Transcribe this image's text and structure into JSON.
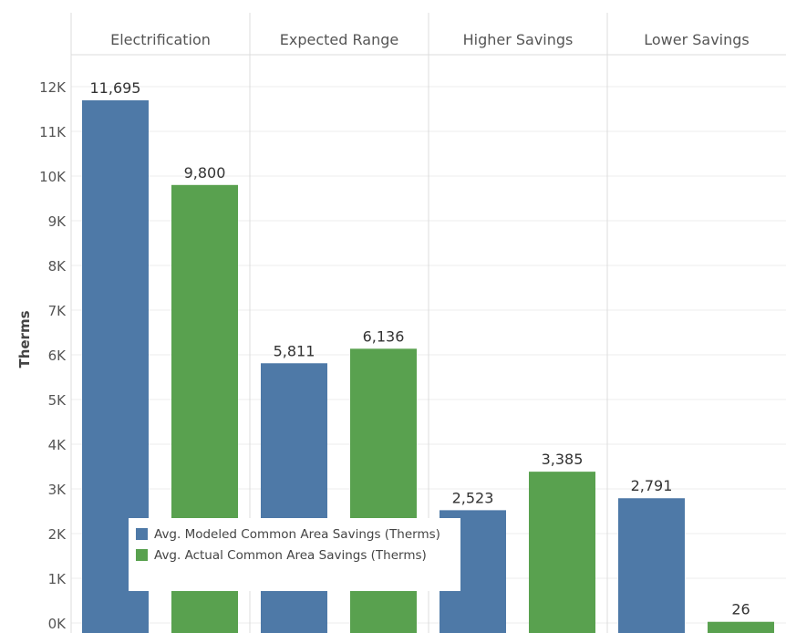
{
  "chart_data": {
    "type": "bar",
    "ylabel": "Therms",
    "ylim": [
      0,
      12000
    ],
    "yticks": [
      0,
      1000,
      2000,
      3000,
      4000,
      5000,
      6000,
      7000,
      8000,
      9000,
      10000,
      11000,
      12000
    ],
    "ytick_labels": [
      "0K",
      "1K",
      "2K",
      "3K",
      "4K",
      "5K",
      "6K",
      "7K",
      "8K",
      "9K",
      "10K",
      "11K",
      "12K"
    ],
    "categories": [
      "Electrification",
      "Expected Range",
      "Higher Savings",
      "Lower Savings"
    ],
    "series": [
      {
        "name": "Avg. Modeled Common Area Savings (Therms)",
        "color": "#4e79a7",
        "values": [
          11695,
          5811,
          2523,
          2791
        ],
        "labels": [
          "11,695",
          "5,811",
          "2,523",
          "2,791"
        ]
      },
      {
        "name": "Avg. Actual Common Area Savings (Therms)",
        "color": "#59a14f",
        "values": [
          9800,
          6136,
          3385,
          26
        ],
        "labels": [
          "9,800",
          "6,136",
          "3,385",
          "26"
        ]
      }
    ],
    "grid": true,
    "legend": "bottom-left"
  }
}
